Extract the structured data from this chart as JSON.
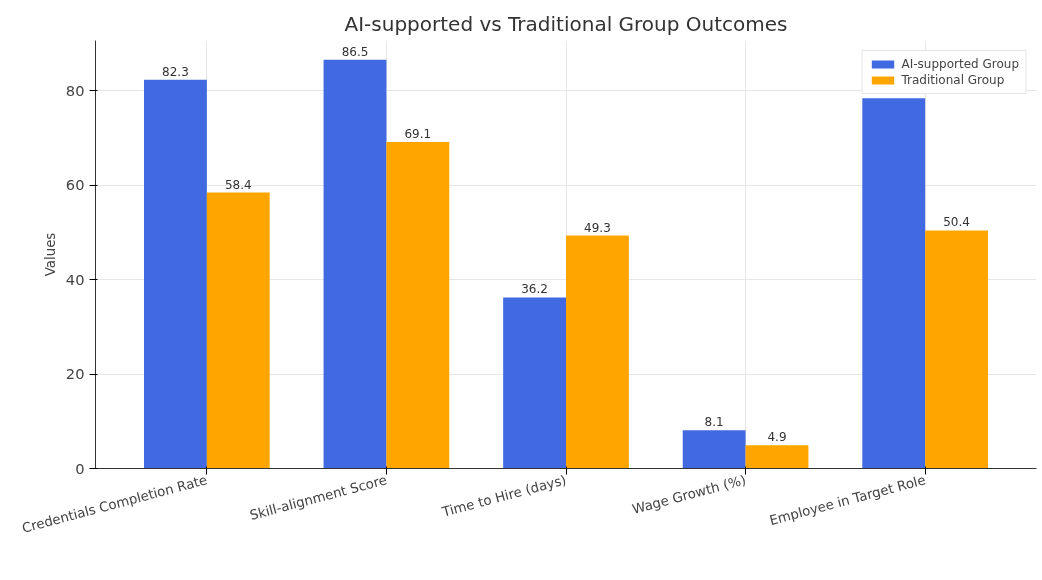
{
  "chart_data": {
    "type": "bar",
    "title": "AI-supported vs Traditional Group Outcomes",
    "ylabel": "Values",
    "categories": [
      "Credentials Completion Rate",
      "Skill-alignment Score",
      "Time to Hire (days)",
      "Wage Growth (%)",
      "Employee in Target Role"
    ],
    "series": [
      {
        "name": "AI-supported Group",
        "color": "#4169e1",
        "values": [
          82.3,
          86.5,
          36.2,
          8.1,
          78.4
        ],
        "value_labels": [
          "82.3",
          "86.5",
          "36.2",
          "8.1",
          null
        ]
      },
      {
        "name": "Traditional Group",
        "color": "#ffa500",
        "values": [
          58.4,
          69.1,
          49.3,
          4.9,
          50.4
        ],
        "value_labels": [
          "58.4",
          "69.1",
          "49.3",
          "4.9",
          "50.4"
        ]
      }
    ],
    "ylim": [
      0,
      90.6
    ],
    "yticks": [
      0,
      20,
      40,
      60,
      80
    ],
    "grid": true,
    "legend": "top right"
  }
}
